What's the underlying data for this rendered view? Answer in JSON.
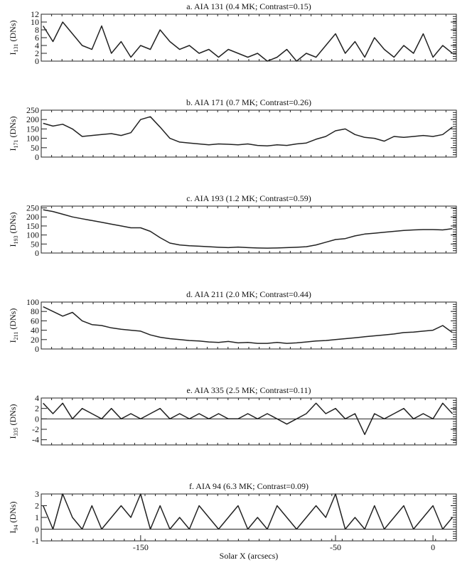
{
  "chart_data": [
    {
      "type": "line",
      "title": "a. AIA 131 (0.4 MK; Contrast=0.15)",
      "ylabel": "I",
      "ylabel_sub": "131",
      "ylabel_unit": "(DNs)",
      "x": [
        -200,
        -195,
        -190,
        -185,
        -180,
        -175,
        -170,
        -165,
        -160,
        -155,
        -150,
        -145,
        -140,
        -135,
        -130,
        -125,
        -120,
        -115,
        -110,
        -105,
        -100,
        -95,
        -90,
        -85,
        -80,
        -75,
        -70,
        -65,
        -60,
        -55,
        -50,
        -45,
        -40,
        -35,
        -30,
        -25,
        -20,
        -15,
        -10,
        -5,
        0,
        5,
        10
      ],
      "values": [
        9,
        5,
        10,
        7,
        4,
        3,
        9,
        2,
        5,
        1,
        4,
        3,
        8,
        5,
        3,
        4,
        2,
        3,
        1,
        3,
        2,
        1,
        2,
        0,
        1,
        3,
        0,
        2,
        1,
        4,
        7,
        2,
        5,
        1,
        6,
        3,
        1,
        4,
        2,
        7,
        1,
        4,
        2
      ],
      "color": "#222222",
      "xlim": [
        -201,
        12
      ],
      "ylim": [
        0,
        12
      ],
      "yticks": [
        0,
        2,
        4,
        6,
        8,
        10,
        12
      ]
    },
    {
      "type": "line",
      "title": "b. AIA 171 (0.7 MK; Contrast=0.26)",
      "ylabel": "I",
      "ylabel_sub": "171",
      "ylabel_unit": "(DNs)",
      "x": [
        -200,
        -195,
        -190,
        -185,
        -180,
        -175,
        -170,
        -165,
        -160,
        -155,
        -150,
        -145,
        -140,
        -135,
        -130,
        -125,
        -120,
        -115,
        -110,
        -105,
        -100,
        -95,
        -90,
        -85,
        -80,
        -75,
        -70,
        -65,
        -60,
        -55,
        -50,
        -45,
        -40,
        -35,
        -30,
        -25,
        -20,
        -15,
        -10,
        -5,
        0,
        5,
        10
      ],
      "values": [
        180,
        165,
        175,
        150,
        110,
        115,
        120,
        125,
        115,
        130,
        200,
        215,
        160,
        100,
        80,
        75,
        70,
        65,
        70,
        68,
        65,
        70,
        62,
        60,
        65,
        62,
        70,
        75,
        95,
        110,
        140,
        150,
        120,
        105,
        100,
        85,
        110,
        105,
        110,
        115,
        110,
        120,
        160
      ],
      "color": "#222222",
      "xlim": [
        -201,
        12
      ],
      "ylim": [
        0,
        250
      ],
      "yticks": [
        0,
        50,
        100,
        150,
        200,
        250
      ]
    },
    {
      "type": "line",
      "title": "c. AIA 193 (1.2 MK; Contrast=0.59)",
      "ylabel": "I",
      "ylabel_sub": "193",
      "ylabel_unit": "(DNs)",
      "x": [
        -200,
        -195,
        -190,
        -185,
        -180,
        -175,
        -170,
        -165,
        -160,
        -155,
        -150,
        -145,
        -140,
        -135,
        -130,
        -125,
        -120,
        -115,
        -110,
        -105,
        -100,
        -95,
        -90,
        -85,
        -80,
        -75,
        -70,
        -65,
        -60,
        -55,
        -50,
        -45,
        -40,
        -35,
        -30,
        -25,
        -20,
        -15,
        -10,
        -5,
        0,
        5,
        10
      ],
      "values": [
        240,
        230,
        215,
        200,
        190,
        180,
        170,
        160,
        150,
        140,
        140,
        120,
        85,
        55,
        45,
        40,
        38,
        35,
        32,
        30,
        33,
        30,
        28,
        27,
        28,
        30,
        32,
        35,
        45,
        60,
        75,
        80,
        95,
        105,
        110,
        115,
        120,
        125,
        128,
        130,
        130,
        128,
        135
      ],
      "color": "#222222",
      "xlim": [
        -201,
        12
      ],
      "ylim": [
        0,
        260
      ],
      "yticks": [
        0,
        50,
        100,
        150,
        200,
        250
      ]
    },
    {
      "type": "line",
      "title": "d. AIA 211 (2.0 MK; Contrast=0.44)",
      "ylabel": "I",
      "ylabel_sub": "211",
      "ylabel_unit": "(DNs)",
      "x": [
        -200,
        -195,
        -190,
        -185,
        -180,
        -175,
        -170,
        -165,
        -160,
        -155,
        -150,
        -145,
        -140,
        -135,
        -130,
        -125,
        -120,
        -115,
        -110,
        -105,
        -100,
        -95,
        -90,
        -85,
        -80,
        -75,
        -70,
        -65,
        -60,
        -55,
        -50,
        -45,
        -40,
        -35,
        -30,
        -25,
        -20,
        -15,
        -10,
        -5,
        0,
        5,
        10
      ],
      "values": [
        90,
        80,
        70,
        78,
        60,
        52,
        50,
        45,
        42,
        40,
        38,
        30,
        25,
        22,
        20,
        18,
        17,
        15,
        14,
        16,
        13,
        14,
        12,
        12,
        14,
        12,
        13,
        15,
        17,
        18,
        20,
        22,
        24,
        26,
        28,
        30,
        32,
        35,
        36,
        38,
        40,
        50,
        35
      ],
      "color": "#222222",
      "xlim": [
        -201,
        12
      ],
      "ylim": [
        0,
        100
      ],
      "yticks": [
        0,
        20,
        40,
        60,
        80,
        100
      ]
    },
    {
      "type": "line",
      "title": "e. AIA 335 (2.5 MK; Contrast=0.11)",
      "ylabel": "I",
      "ylabel_sub": "335",
      "ylabel_unit": "(DNs)",
      "x": [
        -200,
        -195,
        -190,
        -185,
        -180,
        -175,
        -170,
        -165,
        -160,
        -155,
        -150,
        -145,
        -140,
        -135,
        -130,
        -125,
        -120,
        -115,
        -110,
        -105,
        -100,
        -95,
        -90,
        -85,
        -80,
        -75,
        -70,
        -65,
        -60,
        -55,
        -50,
        -45,
        -40,
        -35,
        -30,
        -25,
        -20,
        -15,
        -10,
        -5,
        0,
        5,
        10
      ],
      "values": [
        3,
        1,
        3,
        0,
        2,
        1,
        0,
        2,
        0,
        1,
        0,
        1,
        2,
        0,
        1,
        0,
        1,
        0,
        1,
        0,
        0,
        1,
        0,
        1,
        0,
        -1,
        0,
        1,
        3,
        1,
        2,
        0,
        1,
        -3,
        1,
        0,
        1,
        2,
        0,
        1,
        0,
        3,
        1
      ],
      "color": "#222222",
      "xlim": [
        -201,
        12
      ],
      "ylim": [
        -5,
        4
      ],
      "yticks": [
        -4,
        -2,
        0,
        2,
        4
      ]
    },
    {
      "type": "line",
      "title": "f. AIA 94 (6.3 MK; Contrast=0.09)",
      "ylabel": "I",
      "ylabel_sub": "94",
      "ylabel_unit": "(DNs)",
      "xlabel": "Solar X (arcsecs)",
      "x": [
        -200,
        -195,
        -190,
        -185,
        -180,
        -175,
        -170,
        -165,
        -160,
        -155,
        -150,
        -145,
        -140,
        -135,
        -130,
        -125,
        -120,
        -115,
        -110,
        -105,
        -100,
        -95,
        -90,
        -85,
        -80,
        -75,
        -70,
        -65,
        -60,
        -55,
        -50,
        -45,
        -40,
        -35,
        -30,
        -25,
        -20,
        -15,
        -10,
        -5,
        0,
        5,
        10
      ],
      "values": [
        2,
        0,
        3,
        1,
        0,
        2,
        0,
        1,
        2,
        1,
        3,
        0,
        2,
        0,
        1,
        0,
        2,
        1,
        0,
        1,
        2,
        0,
        1,
        0,
        2,
        1,
        0,
        1,
        2,
        1,
        3,
        0,
        1,
        0,
        2,
        0,
        1,
        2,
        0,
        1,
        2,
        0,
        1
      ],
      "color": "#222222",
      "xlim": [
        -201,
        12
      ],
      "ylim": [
        -1,
        3
      ],
      "yticks": [
        -1,
        0,
        1,
        2,
        3
      ],
      "xticks": [
        -150,
        -50,
        0
      ]
    }
  ]
}
